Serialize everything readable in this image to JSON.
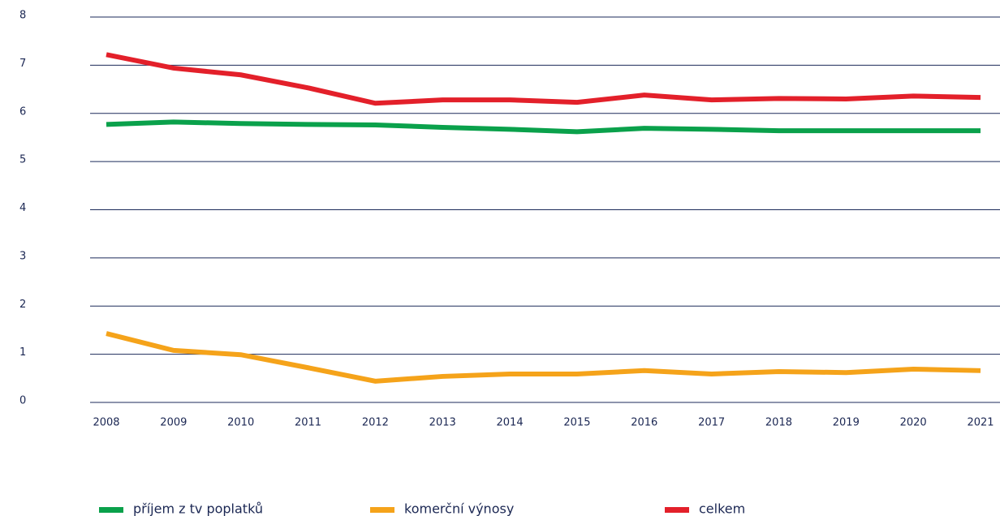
{
  "chart_data": {
    "type": "line",
    "x": [
      2008,
      2009,
      2010,
      2011,
      2012,
      2013,
      2014,
      2015,
      2016,
      2017,
      2018,
      2019,
      2020,
      2021
    ],
    "series": [
      {
        "name": "příjem z tv poplatků",
        "color": "#0aa14b",
        "values": [
          5.77,
          5.82,
          5.79,
          5.77,
          5.76,
          5.71,
          5.67,
          5.62,
          5.69,
          5.67,
          5.64,
          5.64,
          5.64,
          5.64
        ]
      },
      {
        "name": "komerční výnosy",
        "color": "#f5a31a",
        "values": [
          1.43,
          1.08,
          0.99,
          0.72,
          0.44,
          0.54,
          0.59,
          0.59,
          0.66,
          0.59,
          0.64,
          0.62,
          0.69,
          0.66
        ]
      },
      {
        "name": "celkem",
        "color": "#e3202a",
        "values": [
          7.22,
          6.94,
          6.8,
          6.53,
          6.21,
          6.28,
          6.28,
          6.23,
          6.38,
          6.28,
          6.31,
          6.3,
          6.36,
          6.33
        ]
      }
    ],
    "xlim": [
      2008,
      2021
    ],
    "ylim": [
      0,
      8
    ],
    "yticks": [
      0,
      1,
      2,
      3,
      4,
      5,
      6,
      7,
      8
    ],
    "grid": true
  }
}
